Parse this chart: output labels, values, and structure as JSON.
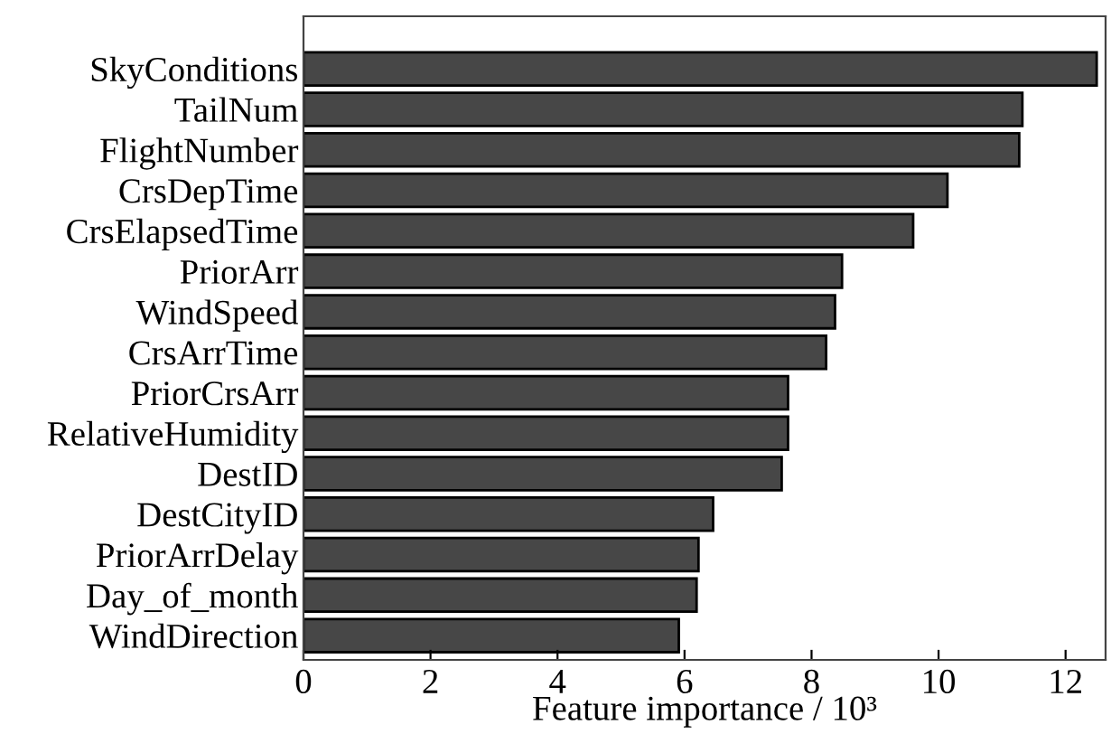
{
  "chart_data": {
    "type": "bar",
    "orientation": "horizontal",
    "xlabel": "Feature importance / 10³",
    "categories": [
      "SkyConditions",
      "TailNum",
      "FlightNumber",
      "CrsDepTime",
      "CrsElapsedTime",
      "PriorArr",
      "WindSpeed",
      "CrsArrTime",
      "PriorCrsArr",
      "RelativeHumidity",
      "DestID",
      "DestCityID",
      "PriorArrDelay",
      "Day_of_month",
      "WindDirection"
    ],
    "values": [
      12.49,
      11.32,
      11.27,
      10.14,
      9.6,
      8.48,
      8.37,
      8.23,
      7.63,
      7.63,
      7.53,
      6.45,
      6.22,
      6.19,
      5.91
    ],
    "color": "#474747",
    "xlim": [
      0,
      12.63
    ],
    "xticks": [
      0,
      2,
      4,
      6,
      8,
      10,
      12
    ],
    "grid": false,
    "legend": false
  }
}
